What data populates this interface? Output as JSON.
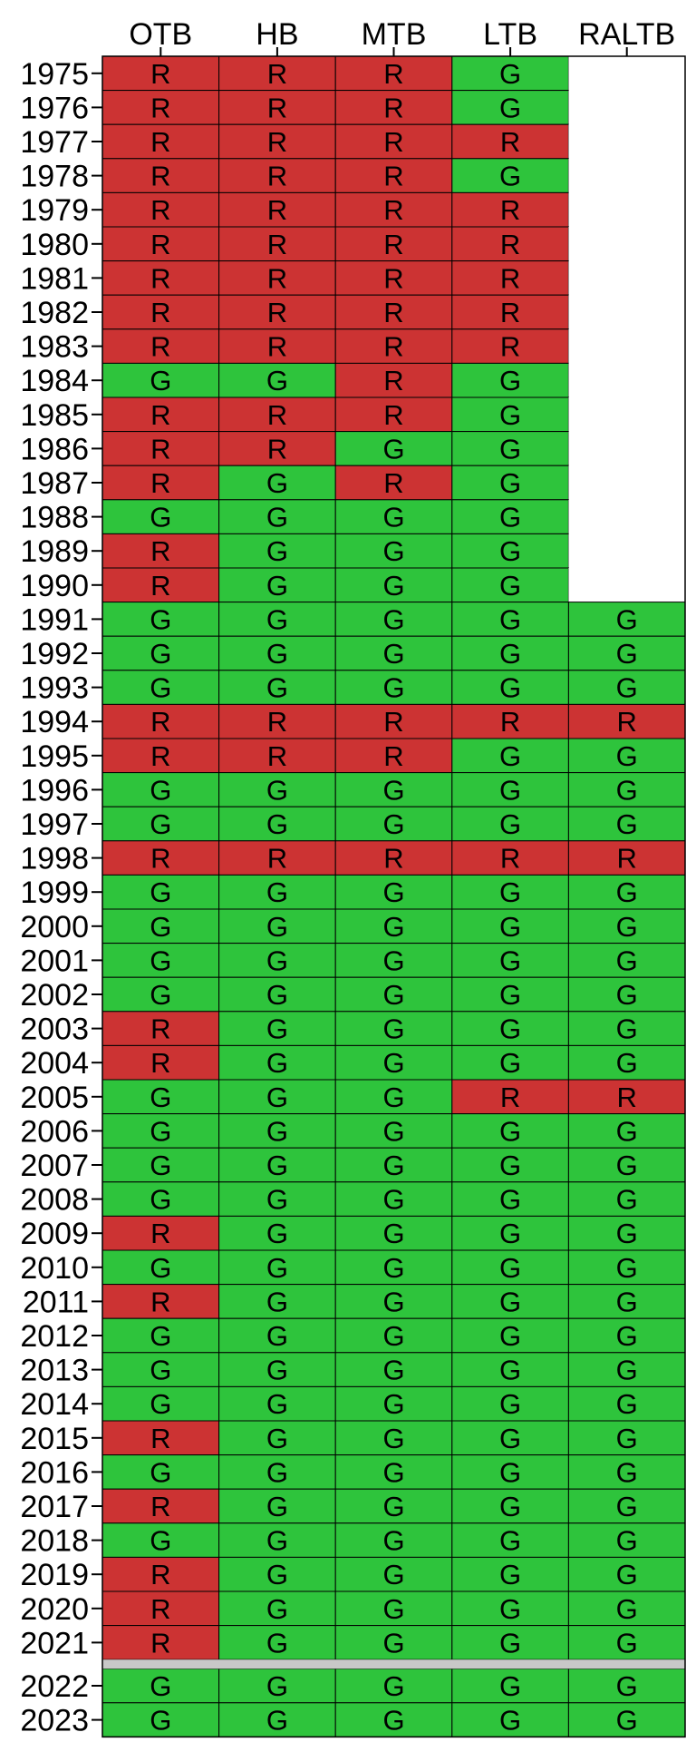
{
  "chart_data": {
    "type": "heatmap",
    "columns": [
      "OTB",
      "HB",
      "MTB",
      "LTB",
      "RALTB"
    ],
    "rows": [
      "1975",
      "1976",
      "1977",
      "1978",
      "1979",
      "1980",
      "1981",
      "1982",
      "1983",
      "1984",
      "1985",
      "1986",
      "1987",
      "1988",
      "1989",
      "1990",
      "1991",
      "1992",
      "1993",
      "1994",
      "1995",
      "1996",
      "1997",
      "1998",
      "1999",
      "2000",
      "2001",
      "2002",
      "2003",
      "2004",
      "2005",
      "2006",
      "2007",
      "2008",
      "2009",
      "2010",
      "2011",
      "2012",
      "2013",
      "2014",
      "2015",
      "2016",
      "2017",
      "2018",
      "2019",
      "2020",
      "2021",
      "2022",
      "2023"
    ],
    "values": [
      [
        "R",
        "R",
        "R",
        "G",
        ""
      ],
      [
        "R",
        "R",
        "R",
        "G",
        ""
      ],
      [
        "R",
        "R",
        "R",
        "R",
        ""
      ],
      [
        "R",
        "R",
        "R",
        "G",
        ""
      ],
      [
        "R",
        "R",
        "R",
        "R",
        ""
      ],
      [
        "R",
        "R",
        "R",
        "R",
        ""
      ],
      [
        "R",
        "R",
        "R",
        "R",
        ""
      ],
      [
        "R",
        "R",
        "R",
        "R",
        ""
      ],
      [
        "R",
        "R",
        "R",
        "R",
        ""
      ],
      [
        "G",
        "G",
        "R",
        "G",
        ""
      ],
      [
        "R",
        "R",
        "R",
        "G",
        ""
      ],
      [
        "R",
        "R",
        "G",
        "G",
        ""
      ],
      [
        "R",
        "G",
        "R",
        "G",
        ""
      ],
      [
        "G",
        "G",
        "G",
        "G",
        ""
      ],
      [
        "R",
        "G",
        "G",
        "G",
        ""
      ],
      [
        "R",
        "G",
        "G",
        "G",
        ""
      ],
      [
        "G",
        "G",
        "G",
        "G",
        "G"
      ],
      [
        "G",
        "G",
        "G",
        "G",
        "G"
      ],
      [
        "G",
        "G",
        "G",
        "G",
        "G"
      ],
      [
        "R",
        "R",
        "R",
        "R",
        "R"
      ],
      [
        "R",
        "R",
        "R",
        "G",
        "G"
      ],
      [
        "G",
        "G",
        "G",
        "G",
        "G"
      ],
      [
        "G",
        "G",
        "G",
        "G",
        "G"
      ],
      [
        "R",
        "R",
        "R",
        "R",
        "R"
      ],
      [
        "G",
        "G",
        "G",
        "G",
        "G"
      ],
      [
        "G",
        "G",
        "G",
        "G",
        "G"
      ],
      [
        "G",
        "G",
        "G",
        "G",
        "G"
      ],
      [
        "G",
        "G",
        "G",
        "G",
        "G"
      ],
      [
        "R",
        "G",
        "G",
        "G",
        "G"
      ],
      [
        "R",
        "G",
        "G",
        "G",
        "G"
      ],
      [
        "G",
        "G",
        "G",
        "R",
        "R"
      ],
      [
        "G",
        "G",
        "G",
        "G",
        "G"
      ],
      [
        "G",
        "G",
        "G",
        "G",
        "G"
      ],
      [
        "G",
        "G",
        "G",
        "G",
        "G"
      ],
      [
        "R",
        "G",
        "G",
        "G",
        "G"
      ],
      [
        "G",
        "G",
        "G",
        "G",
        "G"
      ],
      [
        "R",
        "G",
        "G",
        "G",
        "G"
      ],
      [
        "G",
        "G",
        "G",
        "G",
        "G"
      ],
      [
        "G",
        "G",
        "G",
        "G",
        "G"
      ],
      [
        "G",
        "G",
        "G",
        "G",
        "G"
      ],
      [
        "R",
        "G",
        "G",
        "G",
        "G"
      ],
      [
        "G",
        "G",
        "G",
        "G",
        "G"
      ],
      [
        "R",
        "G",
        "G",
        "G",
        "G"
      ],
      [
        "G",
        "G",
        "G",
        "G",
        "G"
      ],
      [
        "R",
        "G",
        "G",
        "G",
        "G"
      ],
      [
        "R",
        "G",
        "G",
        "G",
        "G"
      ],
      [
        "R",
        "G",
        "G",
        "G",
        "G"
      ],
      [
        "G",
        "G",
        "G",
        "G",
        "G"
      ],
      [
        "G",
        "G",
        "G",
        "G",
        "G"
      ]
    ],
    "colors": {
      "R": "#cc3333",
      "G": "#2ec43c",
      "empty": "#ffffff",
      "separator": "#c8c8c8"
    },
    "separator_between": [
      "2021",
      "2022"
    ],
    "title": "",
    "xlabel": "",
    "ylabel": "",
    "legend": "none",
    "grid": true
  }
}
